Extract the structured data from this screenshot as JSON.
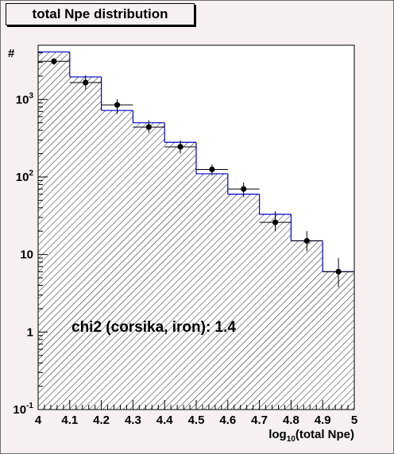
{
  "chart_data": {
    "type": "bar",
    "title": "total Npe distribution",
    "xlabel": "log10(total Npe)",
    "xlabel_base": "log",
    "xlabel_sub": "10",
    "xlabel_rest": "(total Npe)",
    "ylabel": "#",
    "annotation": "chi2 (corsika, iron): 1.4",
    "xlim": [
      4,
      5
    ],
    "ylim": [
      0.1,
      5000
    ],
    "y_scale": "log",
    "x_ticks": [
      "4",
      "4.1",
      "4.2",
      "4.3",
      "4.4",
      "4.5",
      "4.6",
      "4.7",
      "4.8",
      "4.9",
      "5"
    ],
    "y_ticks": [
      {
        "value": 0.1,
        "base": "10",
        "exp": "-1"
      },
      {
        "value": 1,
        "base": "1",
        "exp": ""
      },
      {
        "value": 10,
        "base": "10",
        "exp": ""
      },
      {
        "value": 100,
        "base": "10",
        "exp": "2"
      },
      {
        "value": 1000,
        "base": "10",
        "exp": "3"
      }
    ],
    "histogram": {
      "bin_edges": [
        4.0,
        4.1,
        4.2,
        4.3,
        4.4,
        4.5,
        4.6,
        4.7,
        4.8,
        4.9,
        5.0
      ],
      "values": [
        4100,
        1950,
        720,
        500,
        280,
        110,
        60,
        33,
        15,
        6
      ],
      "fill": "hatched",
      "line_color": "#0000cc"
    },
    "points": {
      "x": [
        4.05,
        4.15,
        4.25,
        4.35,
        4.45,
        4.55,
        4.65,
        4.75,
        4.85,
        4.95
      ],
      "y": [
        3100,
        1650,
        850,
        440,
        245,
        125,
        70,
        26,
        15,
        6
      ],
      "err_low": [
        2800,
        1350,
        650,
        370,
        200,
        105,
        55,
        20,
        11,
        3.8
      ],
      "err_high": [
        3400,
        2050,
        1000,
        540,
        295,
        145,
        85,
        36,
        20,
        9
      ],
      "color": "#000000"
    }
  }
}
